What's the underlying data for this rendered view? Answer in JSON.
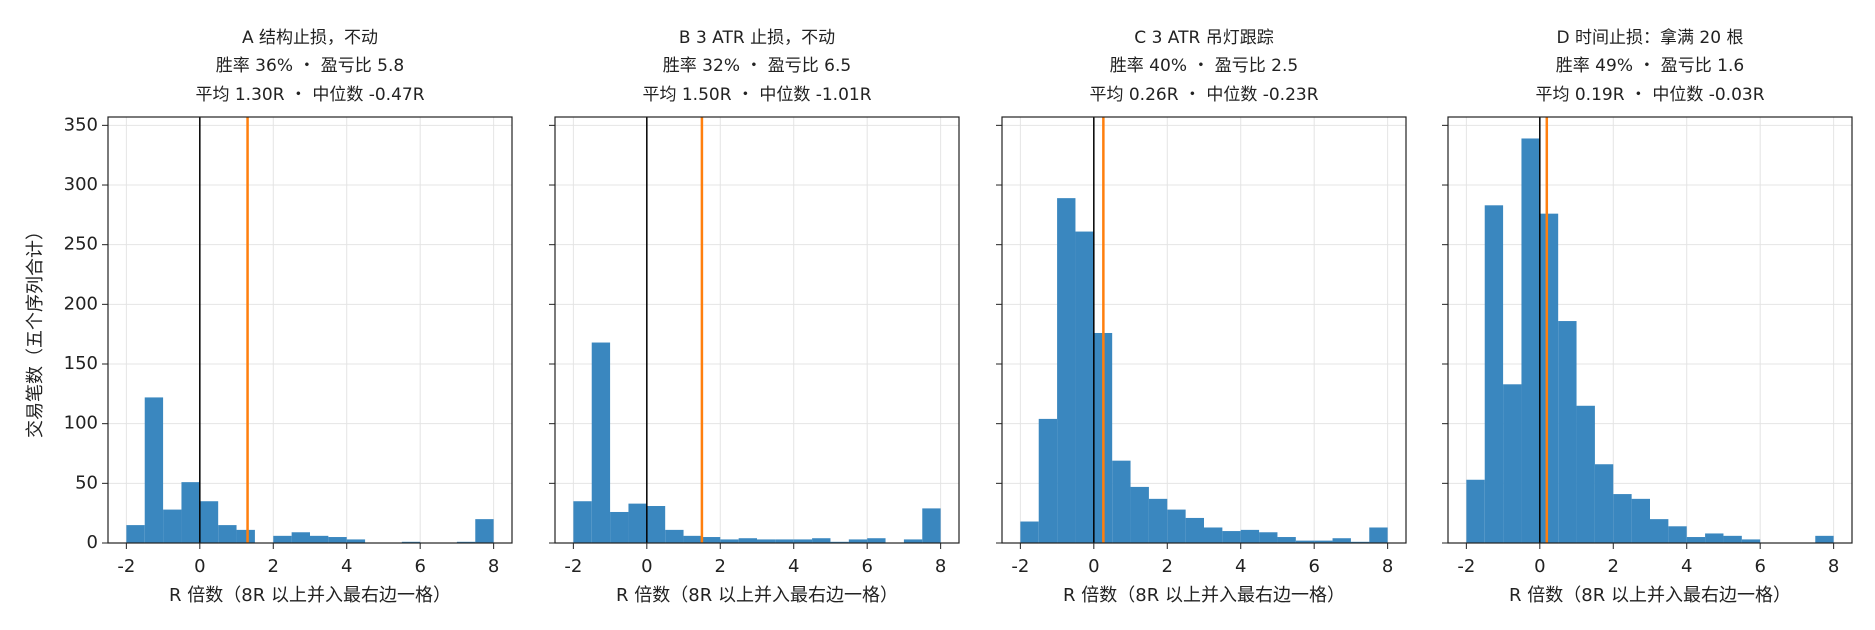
{
  "chart_data": [
    {
      "type": "histogram",
      "title": "A 结构止损，不动",
      "subtitle": [
        "胜率 36% ・ 盈亏比 5.8",
        "平均 1.30R ・ 中位数 -0.47R"
      ],
      "xlabel": "R 倍数（8R 以上并入最右边一格）",
      "ylabel": "交易笔数（五个序列合计）",
      "bins": [
        -2,
        -1.5,
        -1,
        -0.5,
        0,
        0.5,
        1,
        1.5,
        2,
        2.5,
        3,
        3.5,
        4,
        4.5,
        5,
        5.5,
        6,
        6.5,
        7,
        7.5,
        8
      ],
      "counts": [
        15,
        122,
        28,
        51,
        35,
        15,
        11,
        0,
        6,
        9,
        6,
        5,
        3,
        0,
        0,
        1,
        0,
        0,
        1,
        20
      ],
      "color": "#3a87bf",
      "ref_line": 0,
      "ref_color": "#000000",
      "mean_line": 1.3,
      "mean_color": "#ff7f0e",
      "xlim": [
        -2.5,
        8.5
      ],
      "xticks": [
        -2,
        0,
        2,
        4,
        6,
        8
      ],
      "ylim": [
        0,
        357
      ],
      "yticks": [
        0,
        50,
        100,
        150,
        200,
        250,
        300,
        350
      ],
      "grid": true
    },
    {
      "type": "histogram",
      "title": "B 3 ATR 止损，不动",
      "subtitle": [
        "胜率 32% ・ 盈亏比 6.5",
        "平均 1.50R ・ 中位数 -1.01R"
      ],
      "xlabel": "R 倍数（8R 以上并入最右边一格）",
      "bins": [
        -2,
        -1.5,
        -1,
        -0.5,
        0,
        0.5,
        1,
        1.5,
        2,
        2.5,
        3,
        3.5,
        4,
        4.5,
        5,
        5.5,
        6,
        6.5,
        7,
        7.5,
        8
      ],
      "counts": [
        35,
        168,
        26,
        33,
        31,
        11,
        6,
        5,
        3,
        4,
        3,
        3,
        3,
        4,
        1,
        3,
        4,
        0,
        3,
        29
      ],
      "color": "#3a87bf",
      "ref_line": 0,
      "ref_color": "#000000",
      "mean_line": 1.5,
      "mean_color": "#ff7f0e",
      "xlim": [
        -2.5,
        8.5
      ],
      "xticks": [
        -2,
        0,
        2,
        4,
        6,
        8
      ],
      "ylim": [
        0,
        357
      ],
      "yticks": [
        0,
        50,
        100,
        150,
        200,
        250,
        300,
        350
      ],
      "grid": true
    },
    {
      "type": "histogram",
      "title": "C 3 ATR 吊灯跟踪",
      "subtitle": [
        "胜率 40% ・ 盈亏比 2.5",
        "平均 0.26R ・ 中位数 -0.23R"
      ],
      "xlabel": "R 倍数（8R 以上并入最右边一格）",
      "bins": [
        -2,
        -1.5,
        -1,
        -0.5,
        0,
        0.5,
        1,
        1.5,
        2,
        2.5,
        3,
        3.5,
        4,
        4.5,
        5,
        5.5,
        6,
        6.5,
        7,
        7.5,
        8
      ],
      "counts": [
        18,
        104,
        289,
        261,
        176,
        69,
        47,
        37,
        28,
        21,
        13,
        10,
        11,
        9,
        5,
        2,
        2,
        4,
        1,
        13
      ],
      "color": "#3a87bf",
      "ref_line": 0,
      "ref_color": "#000000",
      "mean_line": 0.26,
      "mean_color": "#ff7f0e",
      "xlim": [
        -2.5,
        8.5
      ],
      "xticks": [
        -2,
        0,
        2,
        4,
        6,
        8
      ],
      "ylim": [
        0,
        357
      ],
      "yticks": [
        0,
        50,
        100,
        150,
        200,
        250,
        300,
        350
      ],
      "grid": true
    },
    {
      "type": "histogram",
      "title": "D 时间止损：拿满 20 根",
      "subtitle": [
        "胜率 49% ・ 盈亏比 1.6",
        "平均 0.19R ・ 中位数 -0.03R"
      ],
      "xlabel": "R 倍数（8R 以上并入最右边一格）",
      "bins": [
        -2,
        -1.5,
        -1,
        -0.5,
        0,
        0.5,
        1,
        1.5,
        2,
        2.5,
        3,
        3.5,
        4,
        4.5,
        5,
        5.5,
        6,
        6.5,
        7,
        7.5,
        8
      ],
      "counts": [
        53,
        283,
        133,
        339,
        276,
        186,
        115,
        66,
        41,
        37,
        20,
        14,
        5,
        8,
        6,
        3,
        0,
        0,
        0,
        6
      ],
      "color": "#3a87bf",
      "ref_line": 0,
      "ref_color": "#000000",
      "mean_line": 0.19,
      "mean_color": "#ff7f0e",
      "xlim": [
        -2.5,
        8.5
      ],
      "xticks": [
        -2,
        0,
        2,
        4,
        6,
        8
      ],
      "ylim": [
        0,
        357
      ],
      "yticks": [
        0,
        50,
        100,
        150,
        200,
        250,
        300,
        350
      ],
      "grid": true
    }
  ]
}
